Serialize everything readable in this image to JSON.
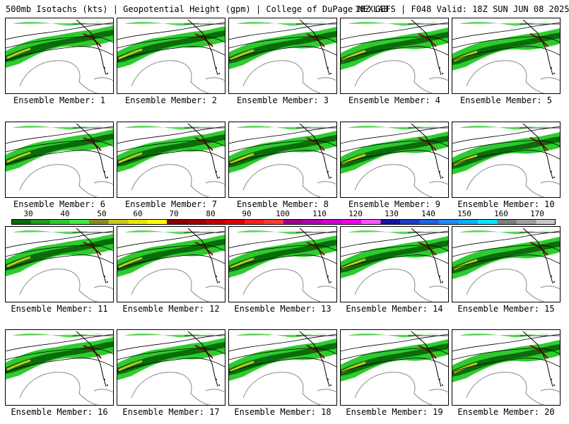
{
  "header": {
    "left": "500mb Isotachs (kts) | Geopotential Height (gpm) | College of DuPage NEXLAB",
    "right": "18Z GEFS | F048 Valid: 18Z SUN JUN 08 2025"
  },
  "members": [
    "Ensemble Member: 1",
    "Ensemble Member: 2",
    "Ensemble Member: 3",
    "Ensemble Member: 4",
    "Ensemble Member: 5",
    "Ensemble Member: 6",
    "Ensemble Member: 7",
    "Ensemble Member: 8",
    "Ensemble Member: 9",
    "Ensemble Member: 10",
    "Ensemble Member: 11",
    "Ensemble Member: 12",
    "Ensemble Member: 13",
    "Ensemble Member: 14",
    "Ensemble Member: 15",
    "Ensemble Member: 16",
    "Ensemble Member: 17",
    "Ensemble Member: 18",
    "Ensemble Member: 19",
    "Ensemble Member: 20"
  ],
  "colorbar": {
    "labels": [
      "30",
      "40",
      "50",
      "60",
      "70",
      "80",
      "90",
      "100",
      "110",
      "120",
      "130",
      "140",
      "150",
      "160",
      "170"
    ],
    "colors": [
      "#0a6b0a",
      "#1e9a1e",
      "#2ecb2e",
      "#3df03d",
      "#8c8c1e",
      "#c8c81e",
      "#e6e600",
      "#ffff00",
      "#8b0000",
      "#a00000",
      "#c00000",
      "#e00000",
      "#ff2020",
      "#ff3c3c",
      "#a0008c",
      "#b400b4",
      "#d200d2",
      "#f000f0",
      "#ff55ff",
      "#1414a0",
      "#1e3cc8",
      "#1e64e6",
      "#1e8cff",
      "#00b4ff",
      "#00e6ff",
      "#808080",
      "#a0a0a0",
      "#c8c8c8"
    ]
  }
}
